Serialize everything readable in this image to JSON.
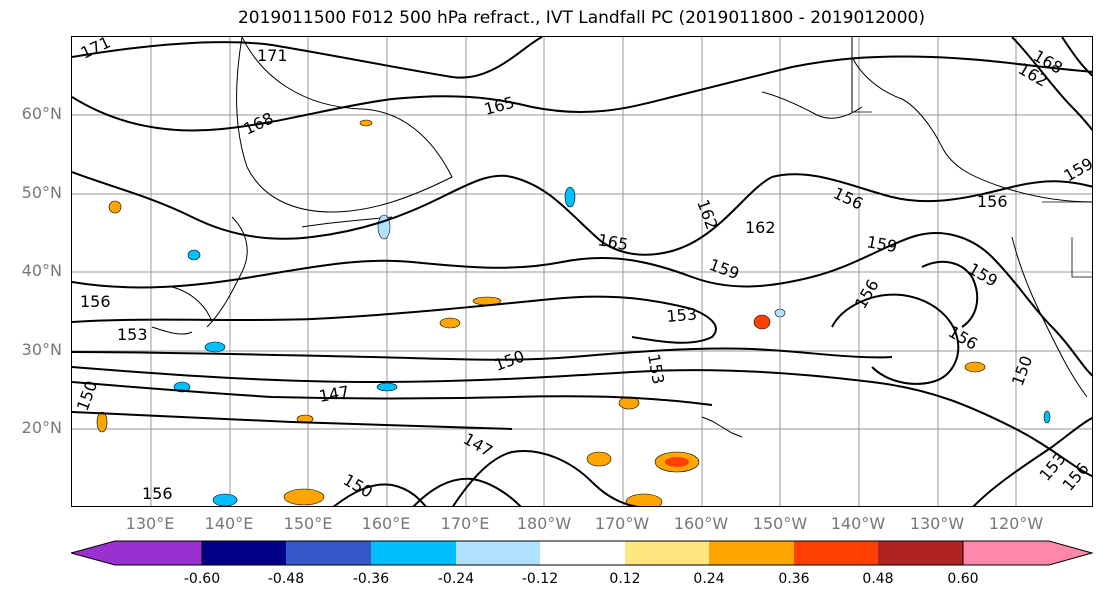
{
  "title": "2019011500 F012 500 hPa refract., IVT Landfall PC (2019011800 - 2019012000)",
  "lat_labels": [
    "60°N",
    "50°N",
    "40°N",
    "30°N",
    "20°N"
  ],
  "lon_labels": [
    "130°E",
    "140°E",
    "150°E",
    "160°E",
    "170°E",
    "180°W",
    "170°W",
    "160°W",
    "150°W",
    "140°W",
    "130°W",
    "120°W"
  ],
  "contour_labels": [
    "171",
    "171",
    "168",
    "165",
    "165",
    "162",
    "162",
    "159",
    "156",
    "156",
    "159",
    "153",
    "153",
    "150",
    "150",
    "147",
    "147",
    "150",
    "156",
    "159",
    "168",
    "162",
    "156",
    "156",
    "159",
    "153",
    "150",
    "153",
    "156",
    "156"
  ],
  "colorbar": {
    "ticks": [
      "-0.60",
      "-0.48",
      "-0.36",
      "-0.24",
      "-0.12",
      "0.12",
      "0.24",
      "0.36",
      "0.48",
      "0.60"
    ],
    "colors": [
      "#9b30d0",
      "#00008b",
      "#3458c8",
      "#00bfff",
      "#b0e2ff",
      "#ffffff",
      "#ffe680",
      "#ffa500",
      "#ff4000",
      "#b22222",
      "#ff88aa"
    ]
  },
  "colors": {
    "contour": "#000000",
    "grid": "#999999",
    "axis_label": "#777777"
  }
}
